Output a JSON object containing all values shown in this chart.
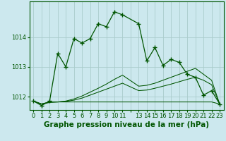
{
  "background_color": "#cce8ee",
  "grid_color": "#aacccc",
  "line_color": "#005500",
  "xlabel": "Graphe pression niveau de la mer (hPa)",
  "xlabel_fontsize": 7.5,
  "tick_fontsize": 6,
  "yticks": [
    1012,
    1013,
    1014
  ],
  "ylim": [
    1011.55,
    1015.2
  ],
  "xlim": [
    -0.5,
    23.5
  ],
  "xtick_labels": [
    "0",
    "1",
    "2",
    "3",
    "4",
    "5",
    "6",
    "7",
    "8",
    "9",
    "10",
    "11",
    "",
    "13",
    "14",
    "15",
    "16",
    "17",
    "18",
    "19",
    "20",
    "21",
    "22",
    "23"
  ],
  "series1_x": [
    0,
    1,
    2,
    3,
    4,
    5,
    6,
    7,
    8,
    9,
    10,
    11,
    13,
    14,
    15,
    16,
    17,
    18,
    19,
    20,
    21,
    22,
    23
  ],
  "series1_y": [
    1011.85,
    1011.7,
    1011.85,
    1013.45,
    1013.0,
    1013.95,
    1013.8,
    1013.95,
    1014.45,
    1014.35,
    1014.85,
    1014.75,
    1014.45,
    1013.2,
    1013.65,
    1013.05,
    1013.25,
    1013.15,
    1012.75,
    1012.65,
    1012.05,
    1012.2,
    1011.75
  ],
  "series2_x": [
    0,
    1,
    2,
    3,
    4,
    5,
    6,
    7,
    8,
    9,
    10,
    11,
    13,
    14,
    15,
    16,
    17,
    18,
    19,
    20,
    21,
    22,
    23
  ],
  "series2_y": [
    1011.85,
    1011.75,
    1011.8,
    1011.82,
    1011.82,
    1011.82,
    1011.82,
    1011.82,
    1011.82,
    1011.82,
    1011.82,
    1011.82,
    1011.82,
    1011.82,
    1011.82,
    1011.82,
    1011.82,
    1011.82,
    1011.82,
    1011.82,
    1011.82,
    1011.82,
    1011.75
  ],
  "series3_x": [
    0,
    1,
    2,
    3,
    4,
    5,
    6,
    7,
    8,
    9,
    10,
    11,
    13,
    14,
    15,
    16,
    17,
    18,
    19,
    20,
    21,
    22,
    23
  ],
  "series3_y": [
    1011.85,
    1011.75,
    1011.82,
    1011.82,
    1011.84,
    1011.88,
    1011.95,
    1012.05,
    1012.15,
    1012.25,
    1012.35,
    1012.45,
    1012.2,
    1012.22,
    1012.28,
    1012.35,
    1012.42,
    1012.5,
    1012.58,
    1012.65,
    1012.55,
    1012.4,
    1011.75
  ],
  "series4_x": [
    0,
    1,
    2,
    3,
    4,
    5,
    6,
    7,
    8,
    9,
    10,
    11,
    13,
    14,
    15,
    16,
    17,
    18,
    19,
    20,
    21,
    22,
    23
  ],
  "series4_y": [
    1011.85,
    1011.75,
    1011.82,
    1011.82,
    1011.85,
    1011.92,
    1012.02,
    1012.15,
    1012.28,
    1012.42,
    1012.58,
    1012.72,
    1012.35,
    1012.38,
    1012.45,
    1012.55,
    1012.65,
    1012.75,
    1012.85,
    1012.95,
    1012.75,
    1012.55,
    1011.75
  ]
}
